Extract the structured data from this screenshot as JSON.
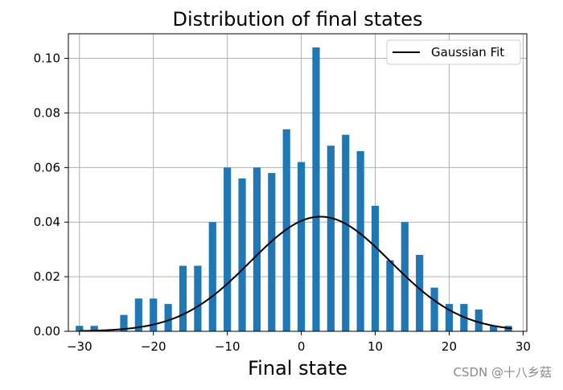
{
  "chart_data": {
    "type": "bar",
    "title": "Distribution of final states",
    "xlabel": "Final state",
    "ylabel": "",
    "xlim": [
      -31.5,
      30.5
    ],
    "ylim": [
      0,
      0.109
    ],
    "grid": true,
    "xticks": [
      -30,
      -20,
      -10,
      0,
      10,
      20,
      30
    ],
    "yticks": [
      0.0,
      0.02,
      0.04,
      0.06,
      0.08,
      0.1
    ],
    "ytick_labels": [
      "0.00",
      "0.02",
      "0.04",
      "0.06",
      "0.08",
      "0.10"
    ],
    "x": [
      -30,
      -28,
      -24,
      -22,
      -20,
      -18,
      -16,
      -14,
      -12,
      -10,
      -8,
      -6,
      -4,
      -2,
      0,
      2,
      4,
      6,
      8,
      10,
      12,
      14,
      16,
      18,
      20,
      22,
      24,
      26,
      28
    ],
    "values": [
      0.002,
      0.002,
      0.006,
      0.012,
      0.012,
      0.01,
      0.024,
      0.024,
      0.04,
      0.06,
      0.056,
      0.06,
      0.058,
      0.074,
      0.062,
      0.104,
      0.068,
      0.072,
      0.066,
      0.046,
      0.026,
      0.04,
      0.028,
      0.016,
      0.01,
      0.01,
      0.008,
      0.002,
      0.002
    ],
    "bar_width": 1.0,
    "bar_color": "#1f77b4",
    "fit": {
      "label": "Gaussian Fit",
      "mean": 2.6,
      "std": 9.5,
      "range": [
        -30,
        28.5
      ],
      "color": "#000000"
    },
    "legend_position": "top-right"
  },
  "watermark": "CSDN @十八乡菇"
}
